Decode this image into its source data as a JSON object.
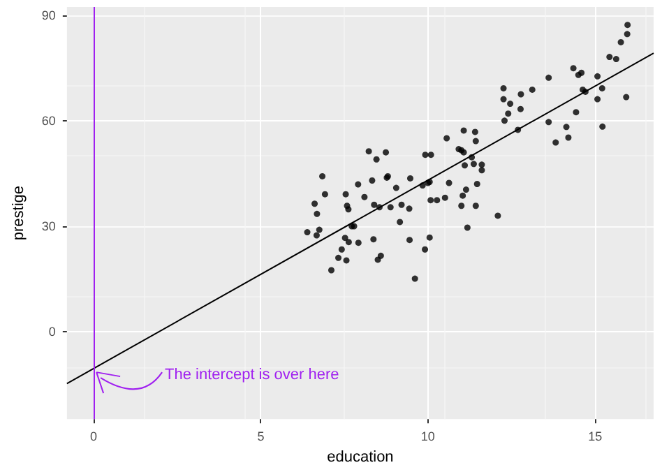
{
  "chart_data": {
    "type": "scatter",
    "xlabel": "education",
    "ylabel": "prestige",
    "x": [
      6.39,
      6.61,
      6.68,
      6.67,
      6.75,
      6.84,
      6.92,
      7.11,
      7.32,
      7.42,
      7.52,
      7.56,
      7.54,
      7.58,
      7.62,
      7.63,
      7.72,
      7.79,
      7.91,
      7.92,
      8.1,
      8.23,
      8.33,
      8.37,
      8.39,
      8.46,
      8.5,
      8.55,
      8.59,
      8.74,
      8.77,
      8.8,
      8.88,
      9.05,
      9.16,
      9.21,
      9.44,
      9.45,
      9.47,
      9.61,
      9.84,
      9.91,
      9.92,
      10.0,
      10.05,
      10.05,
      10.08,
      10.09,
      10.27,
      10.51,
      10.56,
      10.63,
      10.92,
      11.0,
      11.07,
      11.07,
      11.1,
      11.14,
      11.0,
      11.04,
      11.18,
      11.41,
      11.43,
      11.31,
      11.37,
      11.61,
      11.61,
      11.47,
      11.43,
      12.09,
      12.26,
      12.26,
      12.46,
      12.29,
      12.4,
      12.78,
      12.77,
      12.69,
      13.12,
      13.61,
      13.61,
      13.82,
      14.14,
      14.2,
      14.35,
      14.43,
      14.5,
      14.59,
      14.63,
      14.71,
      15.07,
      15.07,
      15.21,
      15.22,
      15.43,
      15.63,
      15.77,
      15.93,
      15.96,
      15.97
    ],
    "series": [
      {
        "color": "#000000",
        "values": [
          28.3,
          36.4,
          33.5,
          27.4,
          29.0,
          44.2,
          39.1,
          17.5,
          21.0,
          23.4,
          26.7,
          20.3,
          39.1,
          35.8,
          34.8,
          25.5,
          30.0,
          30.0,
          41.9,
          25.3,
          38.3,
          51.3,
          43.0,
          26.3,
          36.1,
          49.0,
          20.5,
          35.4,
          21.6,
          51.0,
          43.8,
          44.2,
          35.4,
          40.9,
          31.2,
          36.1,
          35.0,
          26.1,
          43.6,
          15.1,
          41.6,
          23.4,
          50.3,
          42.3,
          42.6,
          26.8,
          37.4,
          50.3,
          37.4,
          38.1,
          55.0,
          42.3,
          51.9,
          51.6,
          57.2,
          51.0,
          47.3,
          40.4,
          35.8,
          38.7,
          29.6,
          56.8,
          54.2,
          49.6,
          47.7,
          47.5,
          45.9,
          42.0,
          35.8,
          33.0,
          69.2,
          66.1,
          64.8,
          60.0,
          62.0,
          67.5,
          63.3,
          57.4,
          68.8,
          72.2,
          59.6,
          53.8,
          58.2,
          55.2,
          74.9,
          62.4,
          73.0,
          73.6,
          68.8,
          68.2,
          72.6,
          66.1,
          69.2,
          58.3,
          78.1,
          77.5,
          82.3,
          66.7,
          84.6,
          87.2
        ]
      },
      {
        "type": "line",
        "color": "#000000",
        "marker": "none",
        "x": [
          -0.8,
          16.75
        ],
        "values": [
          -14.7,
          79.2
        ]
      }
    ],
    "xlim": [
      -0.8,
      16.75
    ],
    "ylim": [
      -24.8,
      92.3
    ],
    "xticks": [
      0,
      5,
      10,
      15
    ],
    "yticks": [
      0,
      30,
      60,
      90
    ],
    "grid": true,
    "marker": "circle",
    "ref_lines": [
      {
        "axis": "x",
        "value": 0,
        "color": "#a020f0"
      }
    ],
    "annotations": [
      {
        "text": "The intercept is over here",
        "x": 0,
        "y": -10.7
      }
    ]
  }
}
